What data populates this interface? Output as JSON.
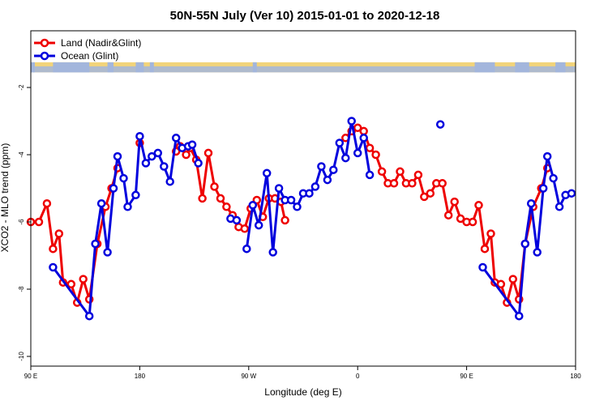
{
  "chart_data": {
    "type": "line",
    "title": "50N-55N July (Ver 10)   2015-01-01 to 2020-12-18",
    "xlabel": "Longitude (deg E)",
    "ylabel": "XCO2 - MLO trend (ppm)",
    "xlim": [
      -90,
      180
    ],
    "ylim": [
      -10,
      -1
    ],
    "x_ticks": [
      {
        "value": -90,
        "label": "90 E"
      },
      {
        "value": -36,
        "label": "180"
      },
      {
        "value": 18,
        "label": "90 W"
      },
      {
        "value": 72,
        "label": "0"
      },
      {
        "value": 126,
        "label": "90 E"
      },
      {
        "value": 180,
        "label": "180"
      }
    ],
    "y_ticks": [
      -2,
      -4,
      -6,
      -8,
      -10
    ],
    "grid": false,
    "legend_position": "top-left",
    "land_mask_colors": {
      "land": "#f2d47a",
      "ocean": "#a3b6dc"
    },
    "series": [
      {
        "name": "Land (Nadir&Glint)",
        "color": "#ee0000",
        "segments": [
          [
            [
              -90,
              -6.0
            ],
            [
              -86,
              -6.0
            ],
            [
              -82,
              -5.45
            ],
            [
              -79,
              -6.8
            ],
            [
              -76,
              -6.35
            ],
            [
              -74,
              -7.8
            ],
            [
              -70,
              -7.85
            ],
            [
              -67,
              -8.4
            ],
            [
              -64,
              -7.7
            ],
            [
              -61,
              -8.3
            ],
            [
              -57,
              -6.65
            ],
            [
              -53,
              -5.55
            ],
            [
              -50,
              -5.0
            ],
            [
              -47,
              -4.4
            ]
          ],
          [
            [
              -36,
              -3.65
            ]
          ],
          [
            [
              -18,
              -3.9
            ],
            [
              -16,
              -3.75
            ],
            [
              -13,
              -4.0
            ],
            [
              -11,
              -3.8
            ],
            [
              -8,
              -4.15
            ],
            [
              -5,
              -5.3
            ],
            [
              -2,
              -3.95
            ],
            [
              1,
              -4.95
            ],
            [
              4,
              -5.3
            ],
            [
              7,
              -5.55
            ],
            [
              10,
              -5.8
            ],
            [
              13,
              -6.15
            ],
            [
              16,
              -6.2
            ],
            [
              19,
              -5.6
            ],
            [
              22,
              -5.35
            ],
            [
              25,
              -5.85
            ],
            [
              28,
              -5.3
            ],
            [
              31,
              -5.3
            ],
            [
              34,
              -5.4
            ],
            [
              36,
              -5.95
            ]
          ],
          [
            [
              66,
              -3.5
            ],
            [
              69,
              -3.3
            ],
            [
              72,
              -3.2
            ],
            [
              75,
              -3.3
            ],
            [
              78,
              -3.8
            ],
            [
              81,
              -4.0
            ],
            [
              84,
              -4.5
            ],
            [
              87,
              -4.85
            ],
            [
              90,
              -4.85
            ],
            [
              93,
              -4.5
            ],
            [
              96,
              -4.85
            ],
            [
              99,
              -4.85
            ],
            [
              102,
              -4.6
            ],
            [
              105,
              -5.25
            ],
            [
              108,
              -5.15
            ],
            [
              111,
              -4.85
            ],
            [
              114,
              -4.85
            ],
            [
              117,
              -5.8
            ],
            [
              120,
              -5.4
            ],
            [
              123,
              -5.9
            ],
            [
              126,
              -6.0
            ],
            [
              129,
              -6.0
            ],
            [
              132,
              -5.5
            ],
            [
              135,
              -6.8
            ],
            [
              138,
              -6.35
            ],
            [
              140,
              -7.8
            ],
            [
              143,
              -7.85
            ],
            [
              146,
              -8.4
            ],
            [
              149,
              -7.7
            ],
            [
              152,
              -8.3
            ],
            [
              155,
              -6.65
            ],
            [
              159,
              -5.55
            ],
            [
              163,
              -5.0
            ],
            [
              166,
              -4.4
            ]
          ]
        ]
      },
      {
        "name": "Ocean (Glint)",
        "color": "#0000dd",
        "segments": [
          [
            [
              -79,
              -7.35
            ],
            [
              -61,
              -8.8
            ],
            [
              -58,
              -6.65
            ],
            [
              -55,
              -5.45
            ],
            [
              -52,
              -6.9
            ],
            [
              -49,
              -5.0
            ],
            [
              -47,
              -4.05
            ],
            [
              -44,
              -4.7
            ],
            [
              -42,
              -5.55
            ],
            [
              -38,
              -5.2
            ],
            [
              -36,
              -3.45
            ],
            [
              -33,
              -4.25
            ],
            [
              -30,
              -4.05
            ],
            [
              -27,
              -3.95
            ],
            [
              -24,
              -4.35
            ],
            [
              -21,
              -4.8
            ],
            [
              -18,
              -3.5
            ],
            [
              -15,
              -3.8
            ],
            [
              -12,
              -3.75
            ],
            [
              -10,
              -3.7
            ],
            [
              -7,
              -4.25
            ]
          ],
          [
            [
              9,
              -5.9
            ],
            [
              12,
              -5.95
            ]
          ],
          [
            [
              17,
              -6.8
            ],
            [
              20,
              -5.5
            ],
            [
              23,
              -6.1
            ],
            [
              27,
              -4.55
            ],
            [
              30,
              -6.9
            ],
            [
              33,
              -5.0
            ],
            [
              36,
              -5.35
            ],
            [
              39,
              -5.35
            ],
            [
              42,
              -5.55
            ],
            [
              45,
              -5.15
            ],
            [
              48,
              -5.15
            ],
            [
              51,
              -4.95
            ],
            [
              54,
              -4.35
            ],
            [
              57,
              -4.75
            ],
            [
              60,
              -4.45
            ],
            [
              63,
              -3.65
            ],
            [
              66,
              -4.1
            ],
            [
              69,
              -3.0
            ],
            [
              72,
              -3.95
            ],
            [
              75,
              -3.5
            ],
            [
              78,
              -4.6
            ]
          ],
          [
            [
              113,
              -3.1
            ]
          ],
          [
            [
              134,
              -7.35
            ],
            [
              152,
              -8.8
            ],
            [
              155,
              -6.65
            ],
            [
              158,
              -5.45
            ],
            [
              161,
              -6.9
            ],
            [
              164,
              -5.0
            ],
            [
              166,
              -4.05
            ],
            [
              169,
              -4.7
            ],
            [
              172,
              -5.55
            ],
            [
              175,
              -5.2
            ],
            [
              178,
              -5.15
            ]
          ]
        ]
      }
    ]
  }
}
